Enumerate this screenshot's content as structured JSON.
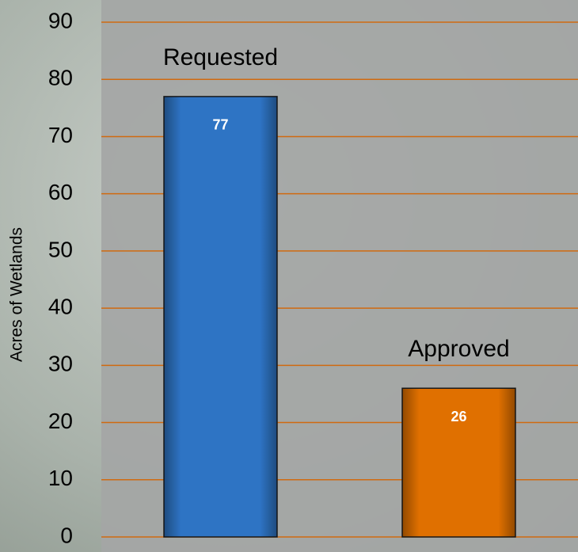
{
  "chart_data": {
    "type": "bar",
    "ylabel": "Acres of Wetlands",
    "categories": [
      "Requested",
      "Approved"
    ],
    "values": [
      77,
      26
    ],
    "colors": [
      "#2e74c4",
      "#e07000"
    ],
    "ylim": [
      0,
      90
    ],
    "yticks": [
      0,
      10,
      20,
      30,
      40,
      50,
      60,
      70,
      80,
      90
    ],
    "grid": true,
    "grid_color": "#d06a10"
  }
}
